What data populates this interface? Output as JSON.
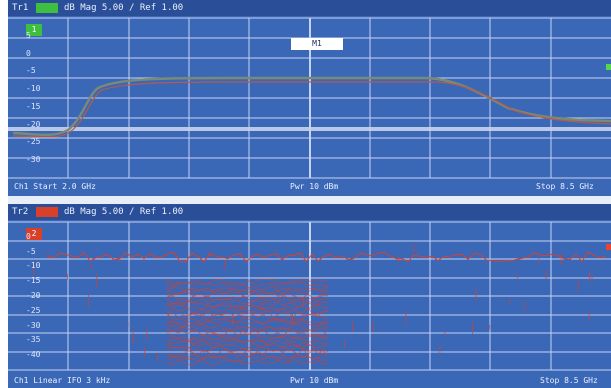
{
  "top_pane": {
    "title_label": "Tr1",
    "chip_color": "#3fbf3f",
    "title_text": "dB Mag  5.00 / Ref 1.00",
    "trace_tag": "1",
    "marker_text": "M1",
    "footer_left": "Ch1  Start  2.0 GHz",
    "footer_center": "Pwr  10 dBm",
    "footer_right": "Stop  8.5  GHz",
    "trace_color": "#7a8a78",
    "axis_labels": [
      "5",
      "0",
      "-5",
      "-10",
      "-15",
      "-20",
      "-25",
      "-30"
    ]
  },
  "bottom_pane": {
    "title_label": "Tr2",
    "chip_color": "#d9402a",
    "title_text": "dB Mag  5.00 / Ref 1.00",
    "trace_tag": "2",
    "footer_left": "Ch1  Linear  IFO  3 kHz",
    "footer_center": "Pwr  10 dBm",
    "footer_right": "Stop  8.5 GHz",
    "trace_color": "#d9402a",
    "axis_labels": [
      "0",
      "-5",
      "-10",
      "-15",
      "-20",
      "-25",
      "-30",
      "-35",
      "-40"
    ]
  },
  "colors": {
    "background": "#3b67b7",
    "grid": "#dce6ff",
    "accent_green": "#57d84c",
    "accent_red": "#e8442e"
  }
}
